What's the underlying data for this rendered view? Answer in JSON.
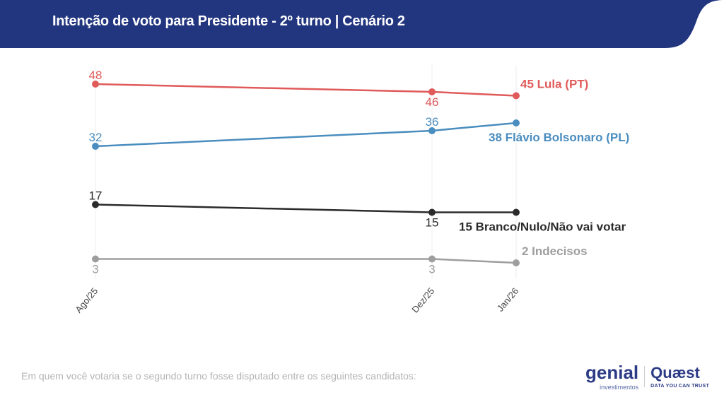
{
  "header": {
    "title": "Intenção de voto para Presidente - 2º turno | Cenário 2",
    "color": "#22357f"
  },
  "footnote": "Em quem você votaria se o segundo turno fosse disputado entre os seguintes candidatos:",
  "logos": {
    "genial": "genial",
    "genial_sub": "investimentos",
    "quaest": "Quæst",
    "quaest_sub": "DATA YOU CAN TRUST"
  },
  "chart_data": {
    "type": "line",
    "x": [
      "Ago/25",
      "Dez/25",
      "Jan/26"
    ],
    "x_dates": [
      "2025-08",
      "2025-12",
      "2026-01"
    ],
    "grid": "vertical",
    "series": [
      {
        "name": "Lula (PT)",
        "end_label": "45 Lula (PT)",
        "color": "#e05a5a",
        "values": [
          48,
          46,
          45
        ]
      },
      {
        "name": "Flávio Bolsonaro (PL)",
        "end_label": "38 Flávio Bolsonaro (PL)",
        "color": "#4a8dbf",
        "values": [
          32,
          36,
          38
        ]
      },
      {
        "name": "Branco/Nulo/Não vai votar",
        "end_label": "15 Branco/Nulo/Não vai votar",
        "color": "#2b2b2b",
        "values": [
          17,
          15,
          15
        ]
      },
      {
        "name": "Indecisos",
        "end_label": "2 Indecisos",
        "color": "#9e9e9e",
        "values": [
          3,
          3,
          2
        ]
      }
    ]
  }
}
